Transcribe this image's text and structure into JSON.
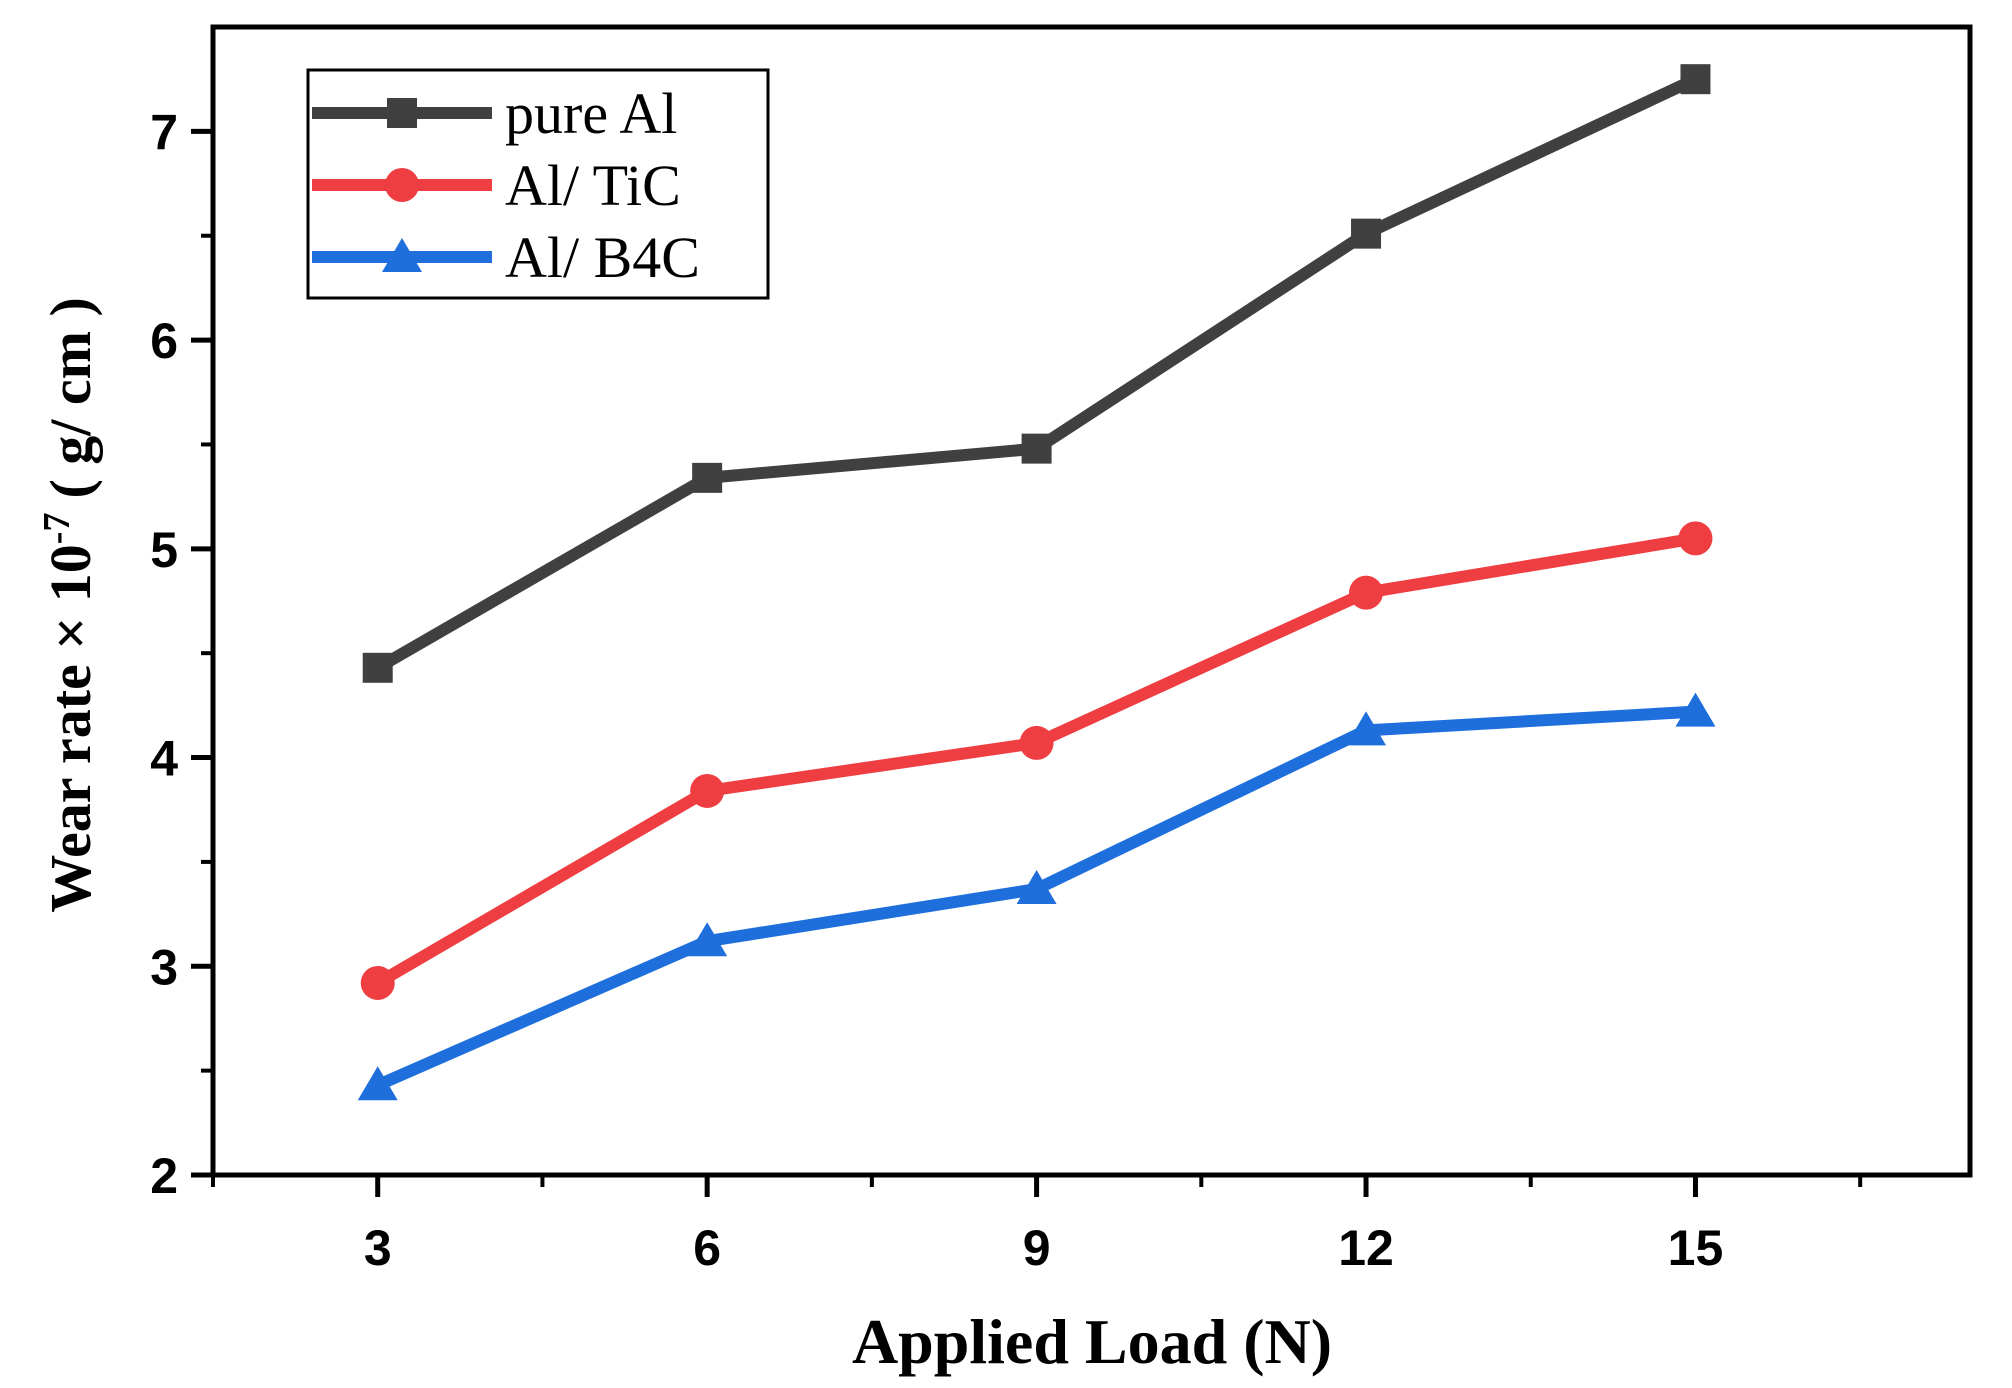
{
  "chart_data": {
    "type": "line",
    "x": [
      3,
      6,
      9,
      12,
      15
    ],
    "series": [
      {
        "name": "pure Al",
        "values": [
          4.43,
          5.34,
          5.48,
          6.51,
          7.25
        ],
        "color": "#404040",
        "marker": "square"
      },
      {
        "name": "Al/ TiC",
        "values": [
          2.92,
          3.84,
          4.07,
          4.79,
          5.05
        ],
        "color": "#ef3e42",
        "marker": "circle"
      },
      {
        "name": "Al/ B4C",
        "values": [
          2.43,
          3.12,
          3.37,
          4.13,
          4.22
        ],
        "color": "#1e6fdc",
        "marker": "triangle"
      }
    ],
    "xlabel": "Applied Load (N)",
    "ylabel": {
      "main": "Wear rate × 10",
      "exponent": "-7",
      "units": "( g/ cm )"
    },
    "xlim": [
      1.5,
      17.5
    ],
    "ylim": [
      2,
      7.5
    ],
    "xticks": [
      3,
      6,
      9,
      12,
      15
    ],
    "yticks": [
      2,
      3,
      4,
      5,
      6,
      7
    ],
    "grid": false,
    "legend_position": "top-left"
  }
}
